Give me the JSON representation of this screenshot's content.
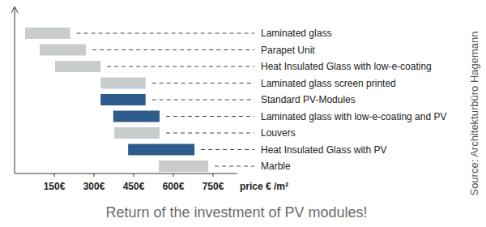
{
  "chart_data": {
    "type": "bar",
    "orientation": "horizontal",
    "title": "Return of the investment of PV modules!",
    "x_label": "price € /m²",
    "annotation": "Source: Architekturbüro Hagemann",
    "categories": [
      "Laminated glass",
      "Parapet Unit",
      "Heat Insulated Glass with low-e-coating",
      "Laminated glass screen printed",
      "Standard PV-Modules",
      "Laminated glass with low-e-coating and PV",
      "Louvers",
      "Heat Insulated Glass with PV",
      "Marble"
    ],
    "values": [
      [
        40,
        210
      ],
      [
        95,
        270
      ],
      [
        153,
        325
      ],
      [
        325,
        495
      ],
      [
        325,
        495
      ],
      [
        373,
        548
      ],
      [
        377,
        548
      ],
      [
        429,
        680
      ],
      [
        545,
        732
      ]
    ],
    "colors": [
      "#c9cccd",
      "#c9cccd",
      "#c9cccd",
      "#c9cccd",
      "#2d5b8c",
      "#2d5b8c",
      "#c9cccd",
      "#2d5b8c",
      "#c9cccd"
    ],
    "xlim": [
      0,
      840
    ],
    "xticks": [
      {
        "value": 150,
        "label": "150€"
      },
      {
        "value": 300,
        "label": "300€"
      },
      {
        "value": 450,
        "label": "450€"
      },
      {
        "value": 600,
        "label": "600€"
      },
      {
        "value": 750,
        "label": "750€"
      }
    ],
    "grid": false
  }
}
